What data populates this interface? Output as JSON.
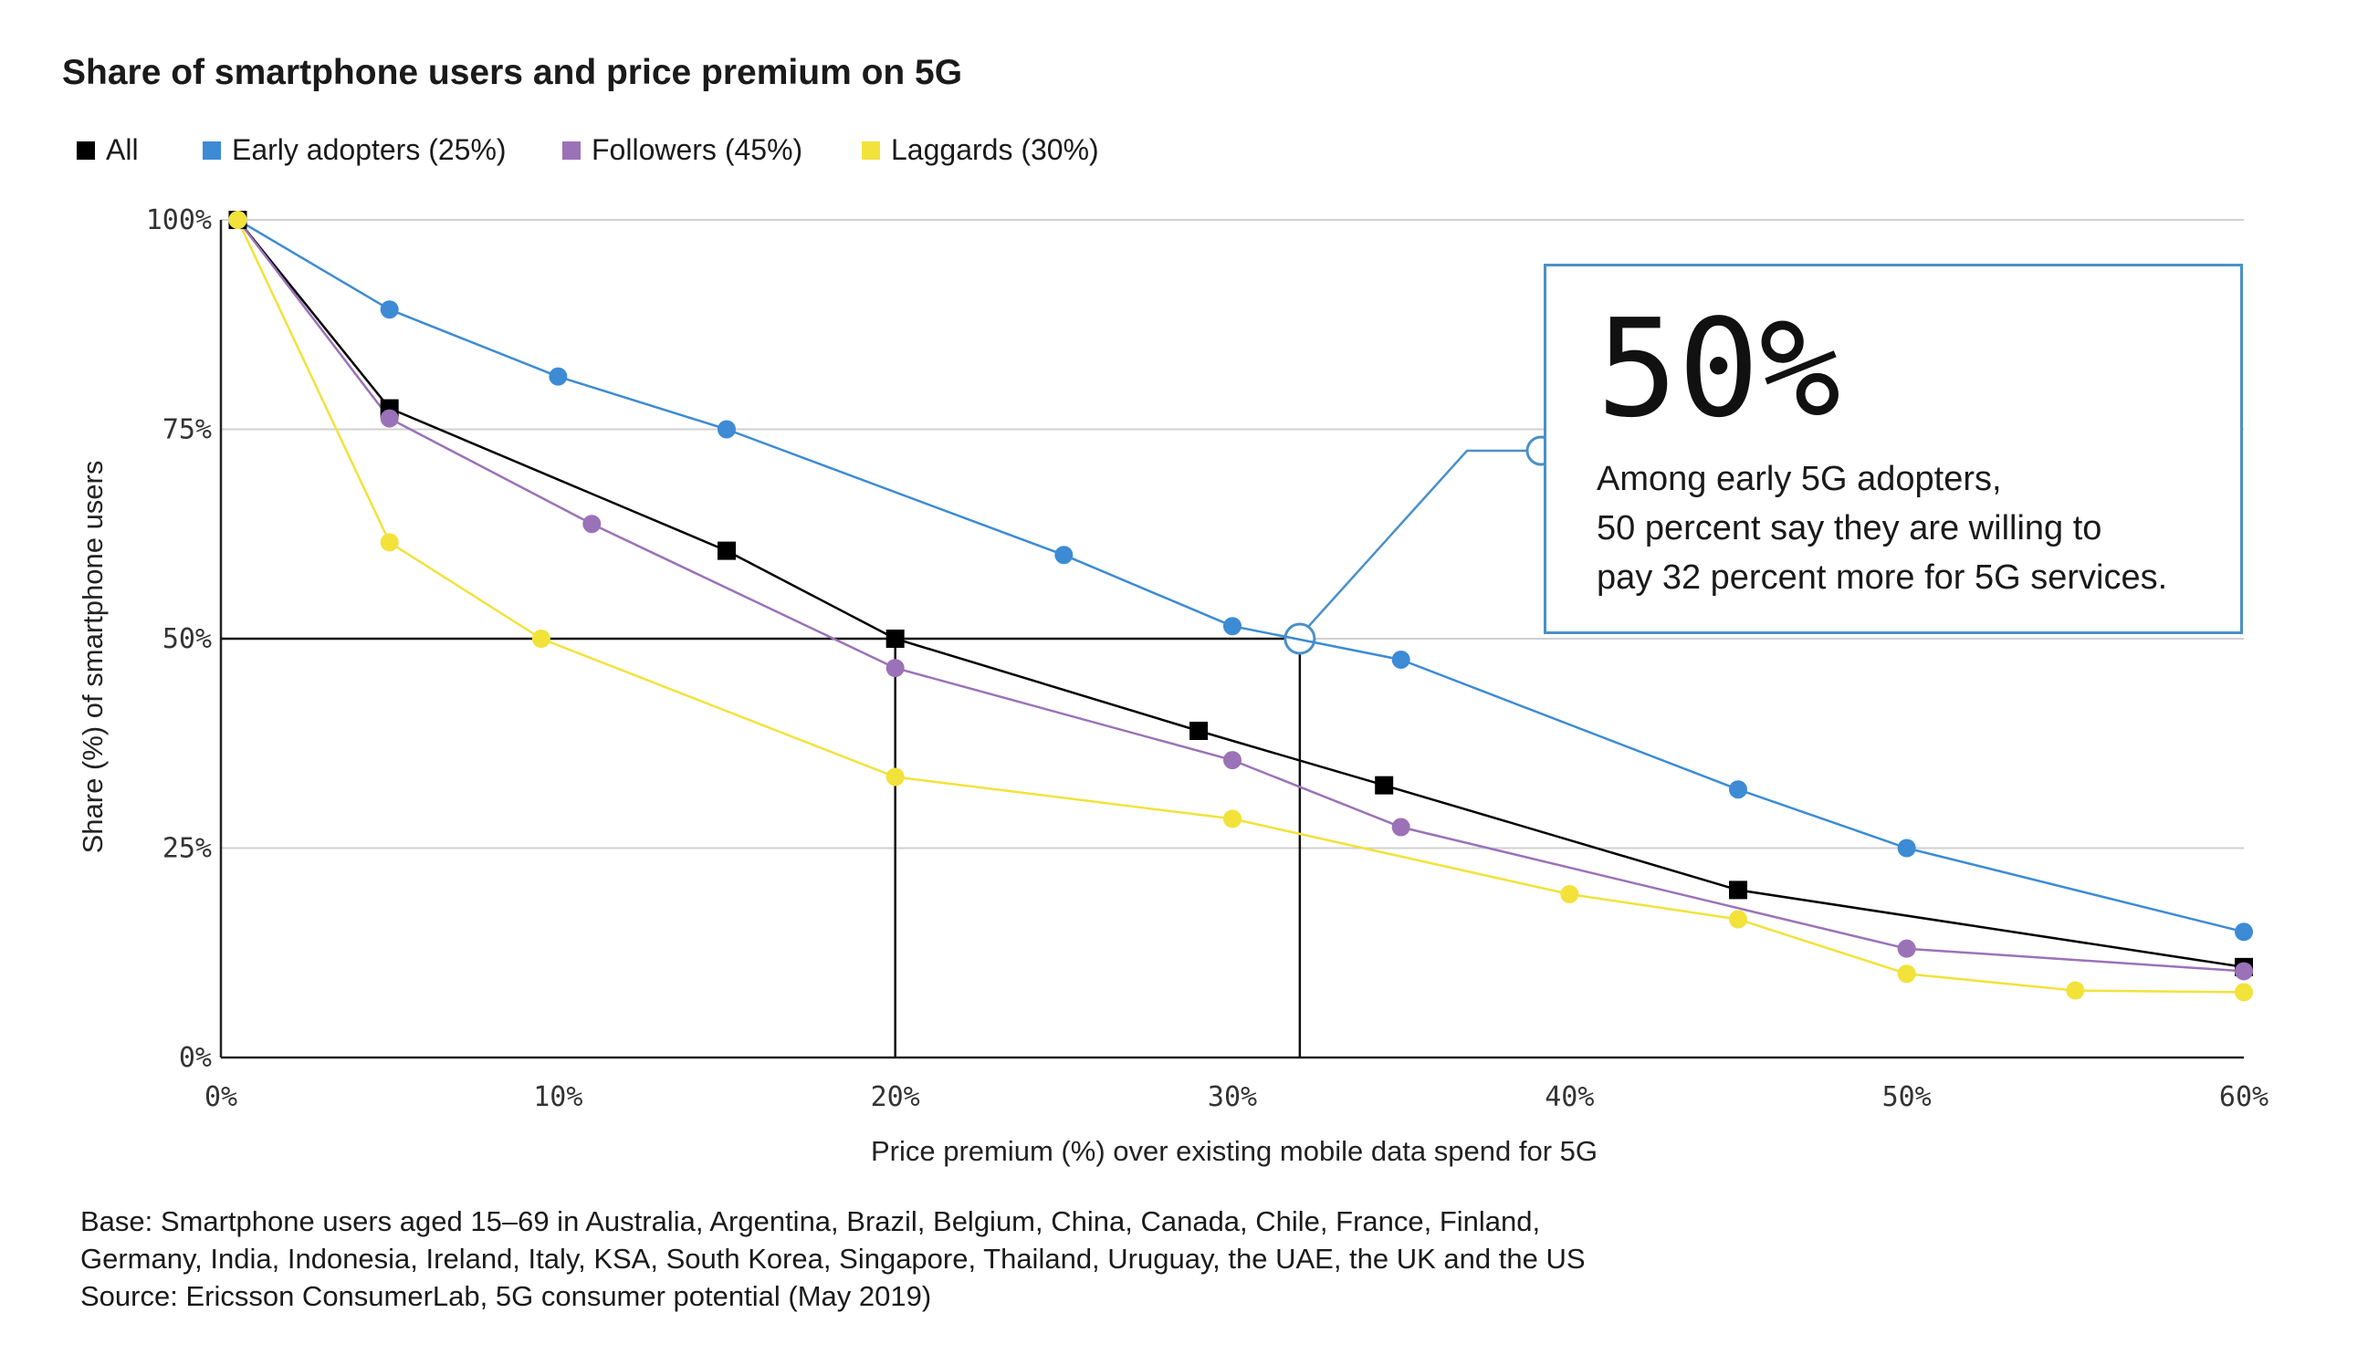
{
  "title": "Share of smartphone users and price premium on 5G",
  "legend": [
    {
      "label": "All",
      "color": "#000000"
    },
    {
      "label": "Early adopters (25%)",
      "color": "#3d8bd4"
    },
    {
      "label": "Followers (45%)",
      "color": "#9b72b8"
    },
    {
      "label": "Laggards (30%)",
      "color": "#f2e23a"
    }
  ],
  "callout": {
    "value": "50%",
    "lines": [
      "Among early 5G adopters,",
      "50 percent say they are willing to",
      "pay 32 percent more for 5G services."
    ]
  },
  "footnotes": [
    "Base: Smartphone users aged 15–69 in Australia, Argentina, Brazil, Belgium, China, Canada, Chile, France, Finland,",
    "Germany, India, Indonesia, Ireland, Italy, KSA, South Korea, Singapore, Thailand, Uruguay, the UAE, the UK and the US",
    "Source: Ericsson ConsumerLab, 5G consumer potential (May 2019)"
  ],
  "chart_data": {
    "type": "line",
    "title": "Share of smartphone users and price premium on 5G",
    "xlabel": "Price premium (%) over existing mobile data spend for 5G",
    "ylabel": "Share (%) of smartphone users",
    "xlim": [
      0,
      60
    ],
    "ylim": [
      0,
      100
    ],
    "xticks": [
      "0%",
      "10%",
      "20%",
      "30%",
      "40%",
      "50%",
      "60%"
    ],
    "yticks": [
      "0%",
      "25%",
      "50%",
      "75%",
      "100%"
    ],
    "grid": "horizontal",
    "legend_position": "top-left",
    "series": [
      {
        "name": "All",
        "color": "#000000",
        "marker": "square",
        "points": [
          [
            0.5,
            100
          ],
          [
            5,
            77.5
          ],
          [
            15,
            60.5
          ],
          [
            20,
            50
          ],
          [
            29,
            39
          ],
          [
            34.5,
            32.5
          ],
          [
            45,
            20
          ],
          [
            60,
            10.8
          ]
        ]
      },
      {
        "name": "Early adopters (25%)",
        "color": "#3d8bd4",
        "marker": "circle",
        "points": [
          [
            0.5,
            100
          ],
          [
            5,
            89.3
          ],
          [
            10,
            81.3
          ],
          [
            15,
            75
          ],
          [
            25,
            60
          ],
          [
            30,
            51.5
          ],
          [
            35,
            47.5
          ],
          [
            45,
            32
          ],
          [
            50,
            25
          ],
          [
            60,
            15
          ]
        ]
      },
      {
        "name": "Followers (45%)",
        "color": "#9b72b8",
        "marker": "circle",
        "points": [
          [
            0.5,
            100
          ],
          [
            5,
            76.3
          ],
          [
            11,
            63.7
          ],
          [
            20,
            46.5
          ],
          [
            30,
            35.5
          ],
          [
            35,
            27.5
          ],
          [
            50,
            13
          ],
          [
            60,
            10.3
          ]
        ]
      },
      {
        "name": "Laggards (30%)",
        "color": "#f2e23a",
        "marker": "circle",
        "points": [
          [
            0.5,
            100
          ],
          [
            5,
            61.5
          ],
          [
            9.5,
            50
          ],
          [
            20,
            33.5
          ],
          [
            30,
            28.5
          ],
          [
            40,
            19.5
          ],
          [
            45,
            16.5
          ],
          [
            50,
            10
          ],
          [
            55,
            8
          ],
          [
            60,
            7.8
          ]
        ]
      }
    ],
    "reference_lines": {
      "horizontal_y": 50,
      "vertical_x": [
        20,
        32
      ],
      "highlight_point": [
        32,
        50
      ]
    }
  }
}
